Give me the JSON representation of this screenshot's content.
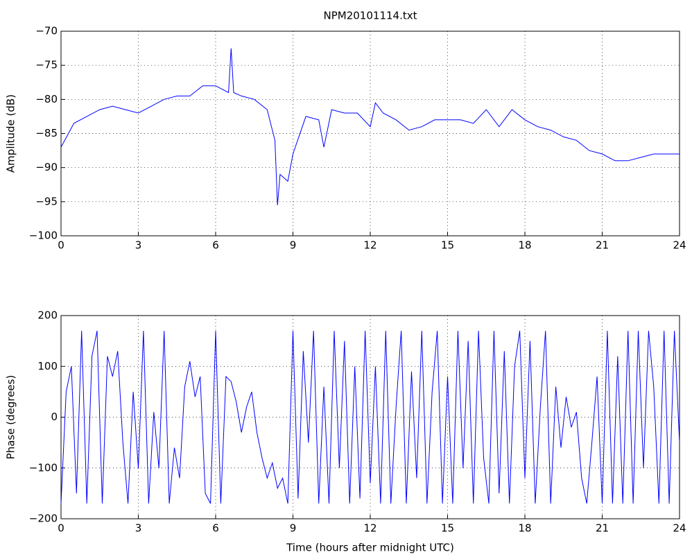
{
  "chart_data": [
    {
      "type": "line",
      "title": "NPM20101114.txt",
      "y_label": "Amplitude (dB)",
      "grid": true,
      "xlim": [
        0,
        24
      ],
      "xticks": [
        0,
        3,
        6,
        9,
        12,
        15,
        18,
        21,
        24
      ],
      "ylim": [
        -100,
        -70
      ],
      "yticks": [
        {
          "value": -100,
          "label": "−100"
        },
        {
          "value": -95,
          "label": "−95"
        },
        {
          "value": -90,
          "label": "−90"
        },
        {
          "value": -85,
          "label": "−85"
        },
        {
          "value": -80,
          "label": "−80"
        },
        {
          "value": -75,
          "label": "−75"
        },
        {
          "value": -70,
          "label": "−70"
        }
      ],
      "x": [
        0,
        0.5,
        1,
        1.5,
        2,
        2.5,
        3,
        3.5,
        4,
        4.5,
        5,
        5.5,
        6,
        6.5,
        6.6,
        6.7,
        7,
        7.5,
        8,
        8.3,
        8.4,
        8.5,
        8.8,
        9,
        9.5,
        10,
        10.2,
        10.5,
        11,
        11.5,
        12,
        12.2,
        12.5,
        13,
        13.5,
        14,
        14.5,
        15,
        15.5,
        16,
        16.5,
        17,
        17.5,
        18,
        18.5,
        19,
        19.5,
        20,
        20.5,
        21,
        21.5,
        22,
        22.5,
        23,
        23.5,
        24
      ],
      "series": [
        {
          "color": "#0000ff",
          "values": [
            -87,
            -83.5,
            -82.5,
            -81.5,
            -81,
            -81.5,
            -82,
            -81,
            -80,
            -79.5,
            -79.5,
            -78,
            -78,
            -79,
            -72.5,
            -79,
            -79.5,
            -80,
            -81.5,
            -86,
            -95.5,
            -91,
            -92,
            -88,
            -82.5,
            -83,
            -87,
            -81.5,
            -82,
            -82,
            -84,
            -80.5,
            -82,
            -83,
            -84.5,
            -84,
            -83,
            -83,
            -83,
            -83.5,
            -81.5,
            -84,
            -81.5,
            -83,
            -84,
            -84.5,
            -85.5,
            -86,
            -87.5,
            -88,
            -89,
            -89,
            -88.5,
            -88,
            -88,
            -88
          ]
        }
      ]
    },
    {
      "type": "line",
      "y_label": "Phase (degrees)",
      "x_label": "Time (hours after midnight UTC)",
      "grid": true,
      "xlim": [
        0,
        24
      ],
      "xticks": [
        0,
        3,
        6,
        9,
        12,
        15,
        18,
        21,
        24
      ],
      "ylim": [
        -200,
        200
      ],
      "yticks": [
        {
          "value": -200,
          "label": "−200"
        },
        {
          "value": -100,
          "label": "−100"
        },
        0,
        100,
        200
      ],
      "x": [
        0,
        0.2,
        0.4,
        0.6,
        0.8,
        1,
        1.2,
        1.4,
        1.6,
        1.8,
        2,
        2.2,
        2.4,
        2.6,
        2.8,
        3,
        3.2,
        3.4,
        3.6,
        3.8,
        4,
        4.2,
        4.4,
        4.6,
        4.8,
        5,
        5.2,
        5.4,
        5.6,
        5.8,
        6,
        6.2,
        6.4,
        6.6,
        6.8,
        7,
        7.2,
        7.4,
        7.6,
        7.8,
        8,
        8.2,
        8.4,
        8.6,
        8.8,
        9,
        9.2,
        9.4,
        9.6,
        9.8,
        10,
        10.2,
        10.4,
        10.6,
        10.8,
        11,
        11.2,
        11.4,
        11.6,
        11.8,
        12,
        12.2,
        12.4,
        12.6,
        12.8,
        13,
        13.2,
        13.4,
        13.6,
        13.8,
        14,
        14.2,
        14.4,
        14.6,
        14.8,
        15,
        15.2,
        15.4,
        15.6,
        15.8,
        16,
        16.2,
        16.4,
        16.6,
        16.8,
        17,
        17.2,
        17.4,
        17.6,
        17.8,
        18,
        18.2,
        18.4,
        18.6,
        18.8,
        19,
        19.2,
        19.4,
        19.6,
        19.8,
        20,
        20.2,
        20.4,
        20.6,
        20.8,
        21,
        21.2,
        21.4,
        21.6,
        21.8,
        22,
        22.2,
        22.4,
        22.6,
        22.8,
        23,
        23.2,
        23.4,
        23.6,
        23.8,
        24
      ],
      "series": [
        {
          "color": "#0000ff",
          "values": [
            -170,
            50,
            100,
            -150,
            170,
            -170,
            120,
            170,
            -170,
            120,
            80,
            130,
            -50,
            -170,
            50,
            -100,
            170,
            -170,
            10,
            -100,
            170,
            -170,
            -60,
            -120,
            60,
            110,
            40,
            80,
            -150,
            -170,
            170,
            -170,
            80,
            70,
            30,
            -30,
            20,
            50,
            -30,
            -80,
            -120,
            -90,
            -140,
            -120,
            -170,
            170,
            -160,
            130,
            -50,
            170,
            -170,
            60,
            -170,
            170,
            -100,
            150,
            -170,
            100,
            -160,
            170,
            -130,
            100,
            -170,
            170,
            -170,
            20,
            170,
            -170,
            90,
            -120,
            170,
            -170,
            50,
            170,
            -170,
            80,
            -170,
            170,
            -100,
            150,
            -170,
            170,
            -80,
            -170,
            170,
            -150,
            130,
            -170,
            100,
            170,
            -120,
            150,
            -170,
            20,
            170,
            -170,
            60,
            -60,
            40,
            -20,
            10,
            -120,
            -170,
            -50,
            80,
            -170,
            170,
            -170,
            120,
            -170,
            170,
            -170,
            170,
            -100,
            170,
            60,
            -170,
            170,
            -170,
            170,
            -50
          ]
        }
      ]
    }
  ]
}
